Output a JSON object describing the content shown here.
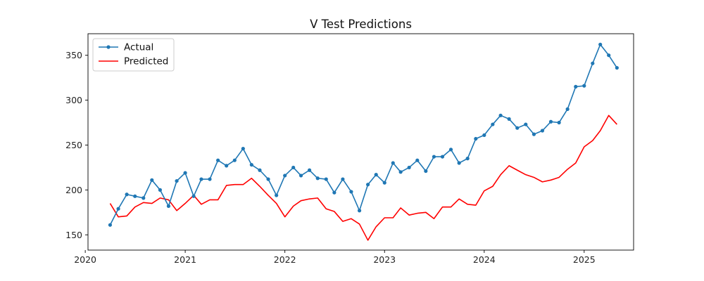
{
  "chart_data": {
    "type": "line",
    "title": "V Test Predictions",
    "xlabel": "",
    "ylabel": "",
    "xlim": [
      "2020-01-11",
      "2025-07-01"
    ],
    "ylim": [
      133,
      374
    ],
    "x_ticks": [
      "2020",
      "2021",
      "2022",
      "2023",
      "2024",
      "2025"
    ],
    "y_ticks": [
      150,
      200,
      250,
      300,
      350
    ],
    "grid": false,
    "legend": "top-left",
    "series": [
      {
        "name": "Actual",
        "color": "#1f77b4",
        "marker": "circle",
        "x": [
          "2020-04-01",
          "2020-05-01",
          "2020-06-01",
          "2020-07-01",
          "2020-08-01",
          "2020-09-01",
          "2020-10-01",
          "2020-11-01",
          "2020-12-01",
          "2021-01-01",
          "2021-02-01",
          "2021-03-01",
          "2021-04-01",
          "2021-05-01",
          "2021-06-01",
          "2021-07-01",
          "2021-08-01",
          "2021-09-01",
          "2021-10-01",
          "2021-11-01",
          "2021-12-01",
          "2022-01-01",
          "2022-02-01",
          "2022-03-01",
          "2022-04-01",
          "2022-05-01",
          "2022-06-01",
          "2022-07-01",
          "2022-08-01",
          "2022-09-01",
          "2022-10-01",
          "2022-11-01",
          "2022-12-01",
          "2023-01-01",
          "2023-02-01",
          "2023-03-01",
          "2023-04-01",
          "2023-05-01",
          "2023-06-01",
          "2023-07-01",
          "2023-08-01",
          "2023-09-01",
          "2023-10-01",
          "2023-11-01",
          "2023-12-01",
          "2024-01-01",
          "2024-02-01",
          "2024-03-01",
          "2024-04-01",
          "2024-05-01",
          "2024-06-01",
          "2024-07-01",
          "2024-08-01",
          "2024-09-01",
          "2024-10-01",
          "2024-11-01",
          "2024-12-01",
          "2025-01-01",
          "2025-02-01",
          "2025-03-01",
          "2025-04-01",
          "2025-05-01"
        ],
        "values": [
          161,
          179,
          195,
          193,
          191,
          211,
          200,
          182,
          210,
          219,
          193,
          212,
          212,
          233,
          227,
          233,
          246,
          228,
          222,
          212,
          194,
          216,
          225,
          216,
          222,
          213,
          212,
          197,
          212,
          198,
          177,
          206,
          217,
          208,
          230,
          220,
          225,
          233,
          221,
          237,
          237,
          245,
          230,
          235,
          257,
          261,
          273,
          283,
          279,
          269,
          273,
          262,
          266,
          276,
          275,
          290,
          315,
          316,
          341,
          362,
          350,
          336
        ]
      },
      {
        "name": "Predicted",
        "color": "#ff0000",
        "marker": "none",
        "x": [
          "2020-04-01",
          "2020-05-01",
          "2020-06-01",
          "2020-07-01",
          "2020-08-01",
          "2020-09-01",
          "2020-10-01",
          "2020-11-01",
          "2020-12-01",
          "2021-01-01",
          "2021-02-01",
          "2021-03-01",
          "2021-04-01",
          "2021-05-01",
          "2021-06-01",
          "2021-07-01",
          "2021-08-01",
          "2021-09-01",
          "2021-10-01",
          "2021-11-01",
          "2021-12-01",
          "2022-01-01",
          "2022-02-01",
          "2022-03-01",
          "2022-04-01",
          "2022-05-01",
          "2022-06-01",
          "2022-07-01",
          "2022-08-01",
          "2022-09-01",
          "2022-10-01",
          "2022-11-01",
          "2022-12-01",
          "2023-01-01",
          "2023-02-01",
          "2023-03-01",
          "2023-04-01",
          "2023-05-01",
          "2023-06-01",
          "2023-07-01",
          "2023-08-01",
          "2023-09-01",
          "2023-10-01",
          "2023-11-01",
          "2023-12-01",
          "2024-01-01",
          "2024-02-01",
          "2024-03-01",
          "2024-04-01",
          "2024-05-01",
          "2024-06-01",
          "2024-07-01",
          "2024-08-01",
          "2024-09-01",
          "2024-10-01",
          "2024-11-01",
          "2024-12-01",
          "2025-01-01",
          "2025-02-01",
          "2025-03-01",
          "2025-04-01",
          "2025-05-01"
        ],
        "values": [
          185,
          170,
          171,
          181,
          186,
          185,
          191,
          189,
          177,
          185,
          194,
          184,
          189,
          189,
          205,
          206,
          206,
          213,
          204,
          194,
          185,
          170,
          182,
          188,
          190,
          191,
          179,
          176,
          165,
          168,
          162,
          144,
          159,
          169,
          169,
          180,
          172,
          174,
          175,
          168,
          181,
          181,
          190,
          184,
          183,
          199,
          204,
          217,
          227,
          222,
          217,
          214,
          209,
          211,
          214,
          223,
          230,
          248,
          255,
          266,
          283,
          273
        ]
      }
    ]
  }
}
